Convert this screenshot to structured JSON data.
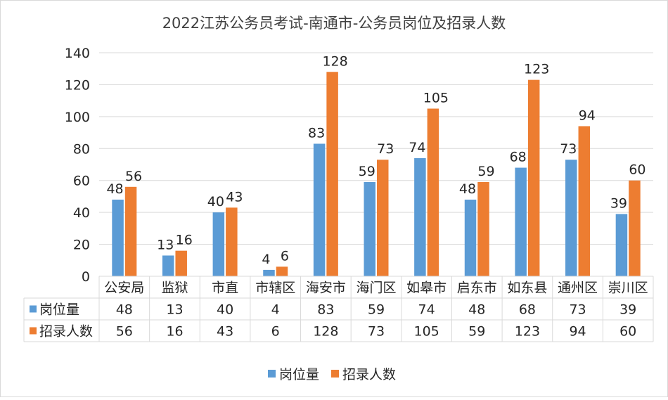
{
  "chart_data": {
    "type": "bar",
    "title": "2022江苏公务员考试-南通市-公务员岗位及招录人数",
    "categories": [
      "公安局",
      "监狱",
      "市直",
      "市辖区",
      "海安市",
      "海门区",
      "如皋市",
      "启东市",
      "如东县",
      "通州区",
      "崇川区"
    ],
    "series": [
      {
        "name": "岗位量",
        "color": "#5b9bd5",
        "values": [
          48,
          13,
          40,
          4,
          83,
          59,
          74,
          48,
          68,
          73,
          39
        ]
      },
      {
        "name": "招录人数",
        "color": "#ed7d31",
        "values": [
          56,
          16,
          43,
          6,
          128,
          73,
          105,
          59,
          123,
          94,
          60
        ]
      }
    ],
    "ylim": [
      0,
      140
    ],
    "yticks": [
      0,
      20,
      40,
      60,
      80,
      100,
      120,
      140
    ],
    "grid": true,
    "legend": "bottom",
    "data_table": true
  }
}
